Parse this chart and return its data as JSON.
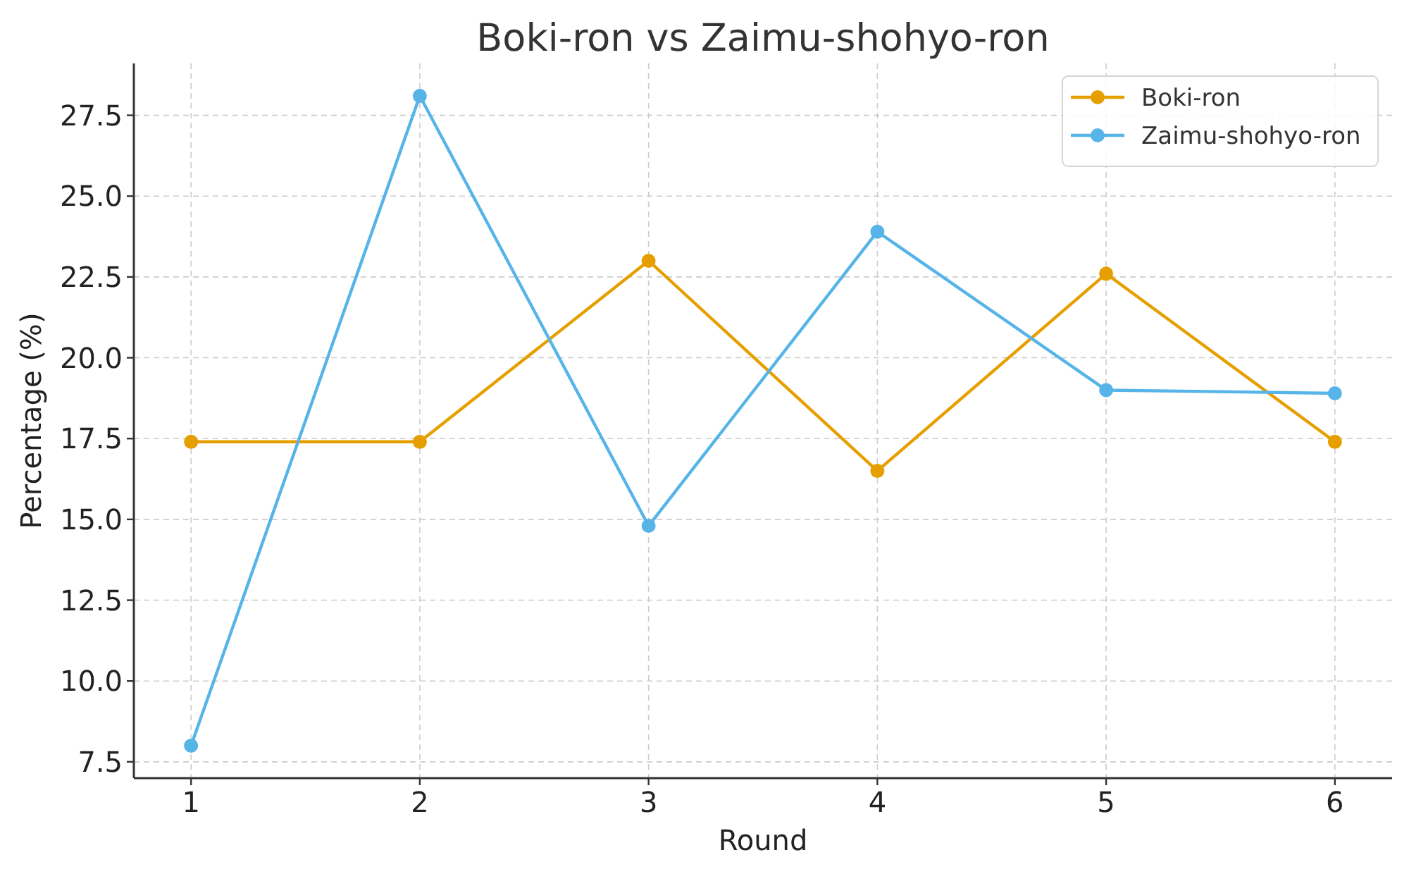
{
  "chart_data": {
    "type": "line",
    "title": "Boki-ron vs Zaimu-shohyo-ron",
    "xlabel": "Round",
    "ylabel": "Percentage (%)",
    "x": [
      1,
      2,
      3,
      4,
      5,
      6
    ],
    "series": [
      {
        "name": "Boki-ron",
        "color": "#e69f00",
        "values": [
          17.4,
          17.4,
          23.0,
          16.5,
          22.6,
          17.4
        ]
      },
      {
        "name": "Zaimu-shohyo-ron",
        "color": "#56b4e9",
        "values": [
          8.0,
          28.1,
          14.8,
          23.9,
          19.0,
          18.9
        ]
      }
    ],
    "xlim": [
      0.75,
      6.25
    ],
    "xticks": [
      1,
      2,
      3,
      4,
      5,
      6
    ],
    "ylim": [
      6.995,
      29.105
    ],
    "yticks": [
      7.5,
      {
        "value": 10,
        "label": "10.0"
      },
      12.5,
      {
        "value": 15,
        "label": "15.0"
      },
      17.5,
      {
        "value": 20,
        "label": "20.0"
      },
      22.5,
      {
        "value": 25,
        "label": "25.0"
      },
      27.5
    ],
    "grid": true,
    "legend": "top right",
    "marker": "circle",
    "line_style": "solid"
  }
}
